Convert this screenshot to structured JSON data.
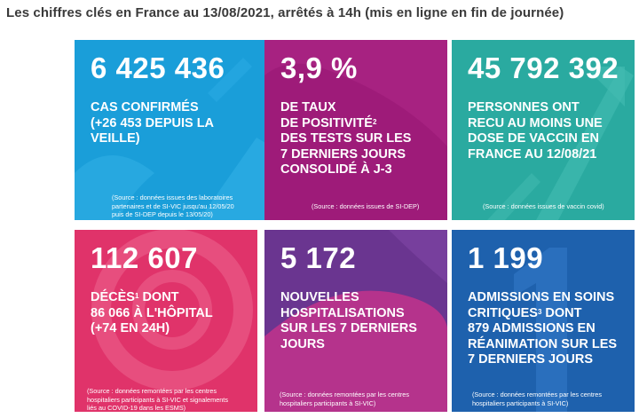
{
  "header": {
    "title": "Les chiffres clés en France au 13/08/2021, arrêtés à 14h (mis en ligne en fin de journée)"
  },
  "colors": {
    "cases": "#1a9ed9",
    "positivity": "#9e1b79",
    "vaccine": "#2aaaa0",
    "deaths": "#e0336a",
    "hospital": "#6a3590",
    "icu": "#1e61ad"
  },
  "tiles": [
    {
      "value": "6 425 436",
      "lines": [
        "CAS CONFIRMÉS",
        "(+26 453 DEPUIS LA",
        "VEILLE)"
      ],
      "source": [
        "(Source : données issues des laboratoires",
        "partenaires et de SI-VIC jusqu'au 12/05/20",
        "puis de SI-DEP depuis le 13/05/20)"
      ]
    },
    {
      "value": "3,9 %",
      "lines": [
        "DE TAUX",
        "DE POSITIVITÉ",
        "DES TESTS SUR LES",
        "7 DERNIERS JOURS",
        "CONSOLIDÉ À J-3"
      ],
      "sup": "2",
      "source": [
        "(Source : données issues de SI-DEP)"
      ]
    },
    {
      "value": "45 792 392",
      "lines": [
        "PERSONNES ONT",
        "RECU AU MOINS UNE",
        "DOSE DE VACCIN EN",
        "FRANCE AU 12/08/21"
      ],
      "source": [
        "(Source : données issues de vaccin covid)"
      ]
    },
    {
      "value": "112 607",
      "lines": [
        "DÉCÈS",
        " DONT",
        "86 066 À L'HÔPITAL",
        "(+74 EN 24H)"
      ],
      "sup": "1",
      "source": [
        "(Source : données remontées par les centres",
        "hospitaliers participants à SI-VIC et signalements",
        "liés au COVID-19 dans les ESMS)"
      ]
    },
    {
      "value": "5 172",
      "lines": [
        "NOUVELLES",
        "HOSPITALISATIONS",
        "SUR LES 7 DERNIERS",
        "JOURS"
      ],
      "source": [
        "(Source : données remontées par les centres",
        "hospitaliers participants à SI-VIC)"
      ]
    },
    {
      "value": "1 199",
      "lines": [
        "ADMISSIONS EN SOINS",
        "CRITIQUES",
        " DONT",
        "879 ADMISSIONS EN",
        "RÉANIMATION SUR LES",
        "7 DERNIERS JOURS"
      ],
      "sup": "3",
      "source": [
        "(Source : données remontées par les centres",
        "hospitaliers participants à SI-VIC)"
      ]
    }
  ]
}
